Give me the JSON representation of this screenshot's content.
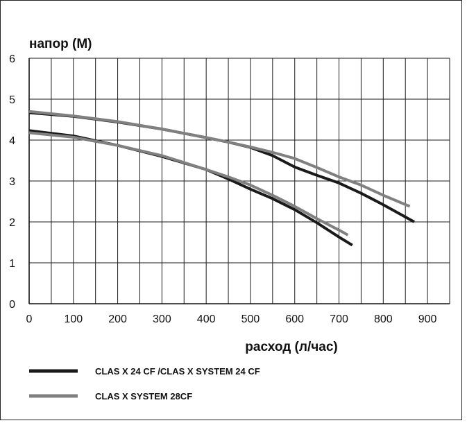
{
  "chart_data": {
    "type": "line",
    "ylabel": "напор (М)",
    "xlabel": "расход (л/час)",
    "xlim": [
      0,
      950
    ],
    "ylim": [
      0,
      6
    ],
    "x_ticks": [
      0,
      100,
      200,
      300,
      400,
      500,
      600,
      700,
      800,
      900
    ],
    "y_ticks": [
      0,
      1,
      2,
      3,
      4,
      5,
      6
    ],
    "x_grid_step": 50,
    "y_grid_step": 1,
    "grid": true,
    "legend_position": "bottom-left",
    "series": [
      {
        "name": "CLAS X 24 CF /CLAS X SYSTEM 24 CF",
        "color": "#1a1a1a",
        "curves": [
          {
            "x": [
              0,
              100,
              200,
              300,
              400,
              450,
              500,
              550,
              600,
              650,
              700,
              730
            ],
            "y": [
              4.23,
              4.1,
              3.87,
              3.6,
              3.28,
              3.05,
              2.8,
              2.57,
              2.3,
              1.98,
              1.63,
              1.43
            ]
          },
          {
            "x": [
              0,
              100,
              200,
              300,
              400,
              450,
              500,
              550,
              600,
              650,
              700,
              750,
              800,
              870
            ],
            "y": [
              4.67,
              4.58,
              4.44,
              4.27,
              4.06,
              3.95,
              3.82,
              3.62,
              3.34,
              3.14,
              2.95,
              2.7,
              2.42,
              2.0
            ]
          }
        ]
      },
      {
        "name": "CLAS X SYSTEM 28CF",
        "color": "#808080",
        "curves": [
          {
            "x": [
              0,
              100,
              200,
              300,
              400,
              450,
              500,
              550,
              600,
              650,
              700,
              720
            ],
            "y": [
              4.18,
              4.07,
              3.87,
              3.62,
              3.28,
              3.1,
              2.9,
              2.65,
              2.38,
              2.08,
              1.8,
              1.68
            ]
          },
          {
            "x": [
              0,
              100,
              200,
              300,
              400,
              450,
              500,
              550,
              600,
              650,
              700,
              750,
              800,
              860
            ],
            "y": [
              4.7,
              4.59,
              4.45,
              4.27,
              4.06,
              3.95,
              3.83,
              3.7,
              3.55,
              3.33,
              3.1,
              2.9,
              2.65,
              2.38
            ]
          }
        ]
      }
    ]
  }
}
